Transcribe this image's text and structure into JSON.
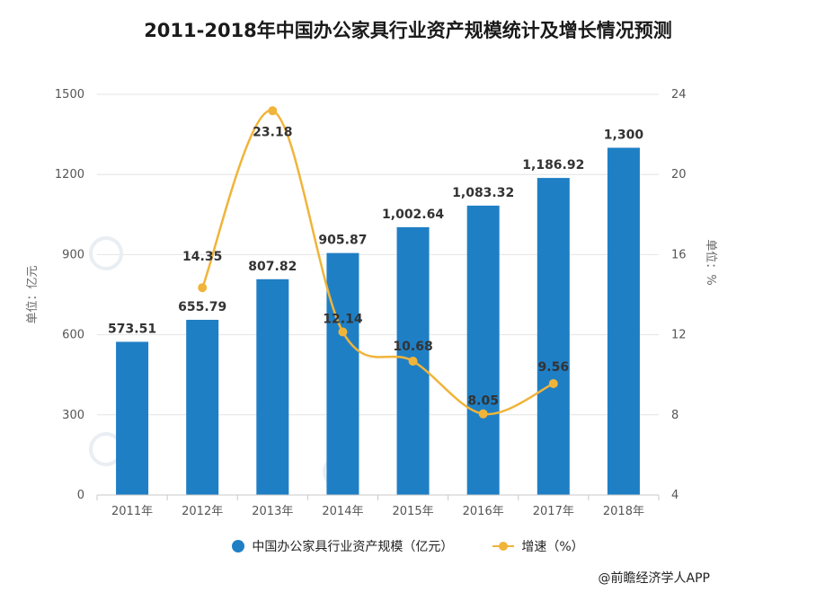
{
  "title": "2011-2018年中国办公家具行业资产规模统计及增长情况预测",
  "source": "@前瞻经济学人APP",
  "colors": {
    "bar": "#1f7fc5",
    "line": "#f0b43a",
    "grid": "#e4e4e4"
  },
  "chart_data": {
    "type": "bar+line",
    "title": "2011-2018年中国办公家具行业资产规模统计及增长情况预测",
    "categories": [
      "2011年",
      "2012年",
      "2013年",
      "2014年",
      "2015年",
      "2016年",
      "2017年",
      "2018年"
    ],
    "series": [
      {
        "name": "中国办公家具行业资产规模（亿元）",
        "type": "bar",
        "axis": "left",
        "values": [
          573.51,
          655.79,
          807.82,
          905.87,
          1002.64,
          1083.32,
          1186.92,
          1300
        ],
        "labels": [
          "573.51",
          "655.79",
          "807.82",
          "905.87",
          "1,002.64",
          "1,083.32",
          "1,186.92",
          "1,300"
        ]
      },
      {
        "name": "增速（%）",
        "type": "line",
        "axis": "right",
        "values": [
          null,
          14.35,
          23.18,
          12.14,
          10.68,
          8.05,
          9.56,
          null
        ],
        "labels": [
          "",
          "14.35",
          "23.18",
          "12.14",
          "10.68",
          "8.05",
          "9.56",
          ""
        ]
      }
    ],
    "ylabel_left": "单位：亿元",
    "ylabel_right": "单位：%",
    "ylim_left": [
      0,
      1500
    ],
    "yticks_left": [
      "0",
      "300",
      "600",
      "900",
      "1200",
      "1500"
    ],
    "ylim_right": [
      4,
      24
    ],
    "yticks_right": [
      "4",
      "8",
      "12",
      "16",
      "20",
      "24"
    ],
    "grid": true,
    "legend": "bottom"
  }
}
